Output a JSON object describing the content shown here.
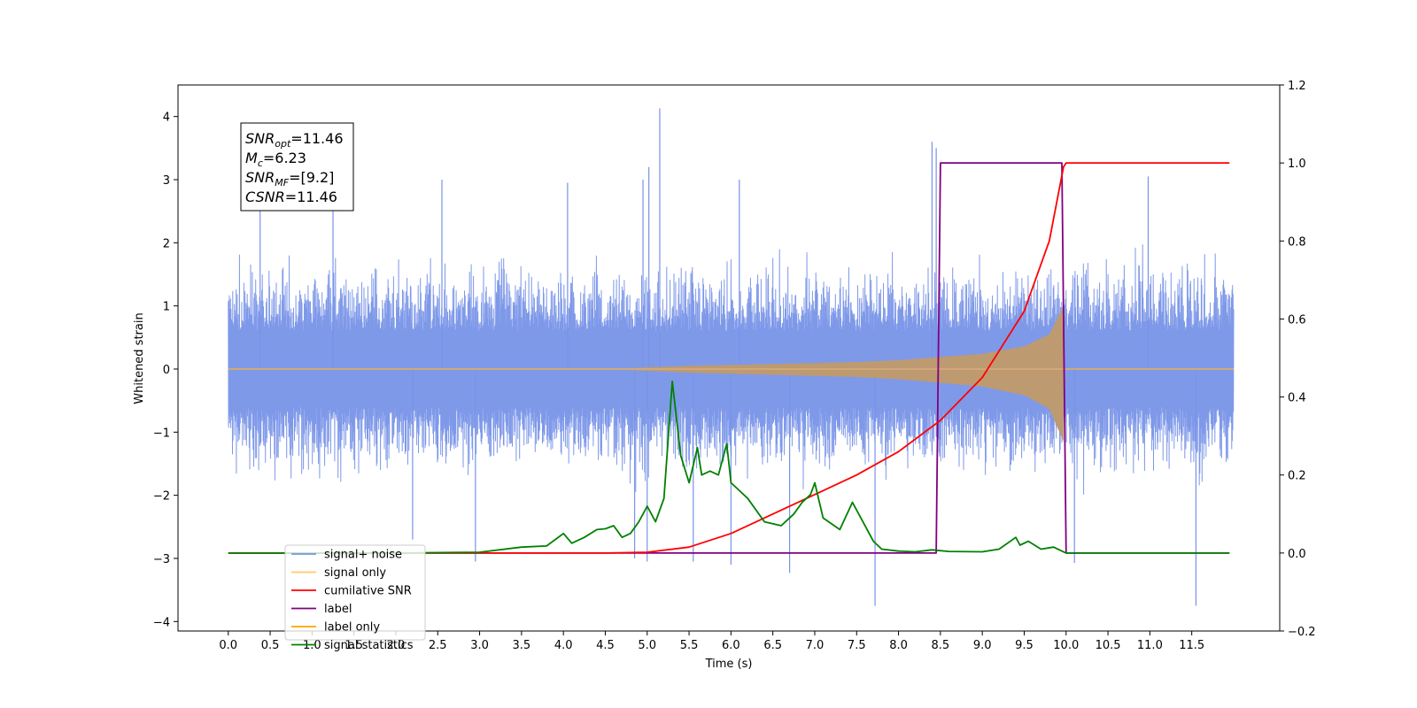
{
  "chart_data": {
    "type": "line",
    "xlabel": "Time (s)",
    "ylabel_left": "Whitened strain",
    "ylabel_right": "",
    "xlim": [
      -0.6,
      12.55
    ],
    "ylim_left": [
      -4.15,
      4.5
    ],
    "ylim_right": [
      -0.2,
      1.2
    ],
    "x_ticks": [
      0.0,
      0.5,
      1.0,
      1.5,
      2.0,
      2.5,
      3.0,
      3.5,
      4.0,
      4.5,
      5.0,
      5.5,
      6.0,
      6.5,
      7.0,
      7.5,
      8.0,
      8.5,
      9.0,
      9.5,
      10.0,
      10.5,
      11.0,
      11.5
    ],
    "x_tick_labels": [
      "0.0",
      "0.5",
      "1.0",
      "1.5",
      "2.0",
      "2.5",
      "3.0",
      "3.5",
      "4.0",
      "4.5",
      "5.0",
      "5.5",
      "6.0",
      "6.5",
      "7.0",
      "7.5",
      "8.0",
      "8.5",
      "9.0",
      "9.5",
      "10.0",
      "10.5",
      "11.0",
      "11.5"
    ],
    "y_ticks_left": [
      -4,
      -3,
      -2,
      -1,
      0,
      1,
      2,
      3,
      4
    ],
    "y_tick_labels_left": [
      "−4",
      "−3",
      "−2",
      "−1",
      "0",
      "1",
      "2",
      "3",
      "4"
    ],
    "y_ticks_right": [
      -0.2,
      0.0,
      0.2,
      0.4,
      0.6,
      0.8,
      1.0,
      1.2
    ],
    "y_tick_labels_right": [
      "−0.2",
      "0.0",
      "0.2",
      "0.4",
      "0.6",
      "0.8",
      "1.0",
      "1.2"
    ],
    "grid": false,
    "legend_position": "lower-left",
    "annotation": {
      "lines": [
        {
          "var": "SNR",
          "sub": "opt",
          "value": "=11.46"
        },
        {
          "var": "M",
          "sub": "c",
          "value": "=6.23"
        },
        {
          "var": "SNR",
          "sub": "MF",
          "value": "=[9.2]"
        },
        {
          "var": "CSNR",
          "sub": "",
          "value": "=11.46"
        }
      ]
    },
    "series": [
      {
        "name": "signal+ noise",
        "color": "#7893e8",
        "axis": "left",
        "kind": "noise",
        "x_range": [
          0.0,
          12.0
        ],
        "typical_amplitude": 1.1,
        "envelope_peak": 1.7,
        "spikes": [
          {
            "x": 0.38,
            "y": 2.55
          },
          {
            "x": 1.25,
            "y": 2.7
          },
          {
            "x": 2.55,
            "y": 3.0
          },
          {
            "x": 4.05,
            "y": 2.95
          },
          {
            "x": 4.95,
            "y": 3.0
          },
          {
            "x": 5.15,
            "y": 4.13
          },
          {
            "x": 5.02,
            "y": 3.2
          },
          {
            "x": 6.1,
            "y": 3.0
          },
          {
            "x": 8.4,
            "y": 3.6
          },
          {
            "x": 8.45,
            "y": 3.5
          },
          {
            "x": 10.98,
            "y": 3.05
          },
          {
            "x": 2.2,
            "y": -2.7
          },
          {
            "x": 2.95,
            "y": -3.05
          },
          {
            "x": 4.85,
            "y": -3.0
          },
          {
            "x": 5.0,
            "y": -3.05
          },
          {
            "x": 5.55,
            "y": -3.05
          },
          {
            "x": 6.0,
            "y": -3.1
          },
          {
            "x": 6.7,
            "y": -3.23
          },
          {
            "x": 7.72,
            "y": -3.75
          },
          {
            "x": 10.1,
            "y": -3.07
          },
          {
            "x": 11.55,
            "y": -3.75
          }
        ]
      },
      {
        "name": "signal only",
        "color": "#ffa500",
        "axis": "left",
        "kind": "chirp",
        "x_range": [
          0.0,
          12.0
        ],
        "chirp_start": 4.5,
        "merger_time": 9.97,
        "envelope": [
          [
            4.5,
            0.0
          ],
          [
            5.5,
            0.05
          ],
          [
            6.5,
            0.08
          ],
          [
            7.5,
            0.11
          ],
          [
            8.0,
            0.14
          ],
          [
            8.5,
            0.19
          ],
          [
            9.0,
            0.24
          ],
          [
            9.5,
            0.36
          ],
          [
            9.8,
            0.55
          ],
          [
            9.97,
            1.0
          ]
        ]
      },
      {
        "name": "cumilative SNR",
        "color": "#ff0000",
        "axis": "right",
        "x": [
          0.0,
          4.5,
          5.0,
          5.5,
          6.0,
          6.5,
          7.0,
          7.5,
          8.0,
          8.5,
          9.0,
          9.5,
          9.8,
          9.97,
          10.0,
          11.5,
          11.95
        ],
        "y": [
          0.0,
          0.0,
          0.002,
          0.015,
          0.05,
          0.1,
          0.15,
          0.2,
          0.26,
          0.34,
          0.45,
          0.62,
          0.8,
          0.99,
          1.0,
          1.0,
          1.0
        ]
      },
      {
        "name": "label",
        "color": "#800080",
        "axis": "right",
        "x": [
          0.0,
          8.45,
          8.5,
          9.95,
          10.0,
          11.95
        ],
        "y": [
          0.0,
          0.0,
          1.0,
          1.0,
          0.0,
          0.0
        ]
      },
      {
        "name": "label only",
        "color": "#ffa500",
        "axis": "right",
        "hidden_line": true,
        "x": [],
        "y": []
      },
      {
        "name": "signal statistics",
        "color": "#008000",
        "axis": "right",
        "x": [
          0.0,
          2.0,
          3.0,
          3.5,
          3.8,
          4.0,
          4.1,
          4.25,
          4.4,
          4.5,
          4.6,
          4.7,
          4.8,
          4.9,
          5.0,
          5.1,
          5.2,
          5.3,
          5.4,
          5.5,
          5.6,
          5.65,
          5.75,
          5.85,
          5.95,
          6.0,
          6.05,
          6.2,
          6.4,
          6.6,
          6.75,
          6.85,
          6.95,
          7.0,
          7.1,
          7.3,
          7.45,
          7.55,
          7.7,
          7.8,
          8.0,
          8.2,
          8.4,
          8.6,
          9.0,
          9.2,
          9.4,
          9.45,
          9.55,
          9.7,
          9.85,
          10.0,
          10.2,
          11.95
        ],
        "y": [
          0.0,
          0.0,
          0.002,
          0.015,
          0.018,
          0.05,
          0.025,
          0.04,
          0.06,
          0.062,
          0.07,
          0.04,
          0.05,
          0.08,
          0.12,
          0.08,
          0.14,
          0.44,
          0.25,
          0.18,
          0.27,
          0.2,
          0.21,
          0.2,
          0.28,
          0.18,
          0.17,
          0.14,
          0.08,
          0.07,
          0.1,
          0.13,
          0.15,
          0.18,
          0.09,
          0.06,
          0.13,
          0.09,
          0.03,
          0.01,
          0.005,
          0.003,
          0.008,
          0.004,
          0.003,
          0.01,
          0.04,
          0.02,
          0.03,
          0.01,
          0.015,
          0.0,
          0.0,
          0.0
        ]
      }
    ]
  }
}
